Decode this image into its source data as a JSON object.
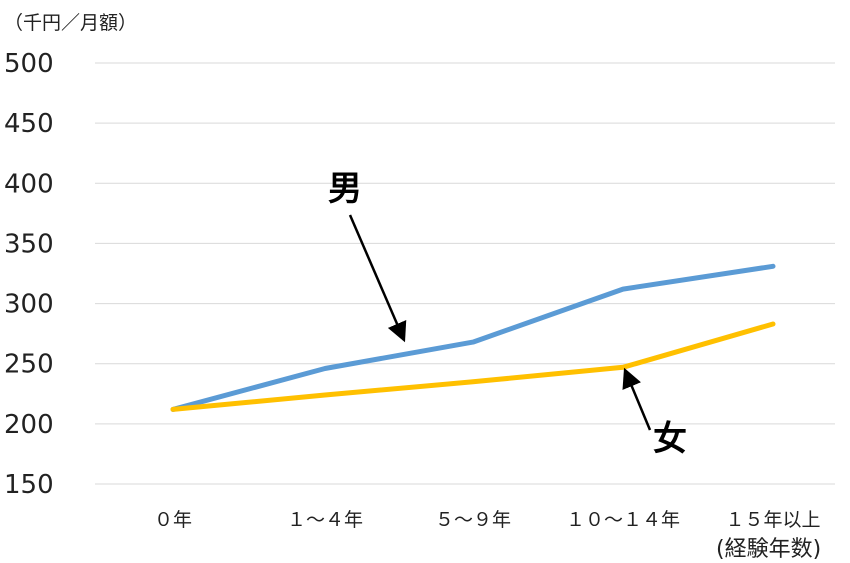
{
  "chart_data": {
    "type": "line",
    "unit_label": "（千円／月額）",
    "x_axis_title": "(経験年数)",
    "categories": [
      "0年",
      "1～4年",
      "5～9年",
      "10～14年",
      "15年以上"
    ],
    "category_labels": [
      "０年",
      "１～４年",
      "５～９年",
      "１０～１４年",
      "１５年以上"
    ],
    "ylim": [
      150,
      500
    ],
    "yticks": [
      150,
      200,
      250,
      300,
      350,
      400,
      450,
      500
    ],
    "grid": true,
    "series": [
      {
        "name": "男",
        "values": [
          212,
          246,
          268,
          312,
          331
        ],
        "color": "#5B9BD5"
      },
      {
        "name": "女",
        "values": [
          212,
          224,
          235,
          247,
          283
        ],
        "color": "#FFC000"
      }
    ],
    "annotations": [
      {
        "text": "男",
        "series": "男"
      },
      {
        "text": "女",
        "series": "女"
      }
    ]
  }
}
